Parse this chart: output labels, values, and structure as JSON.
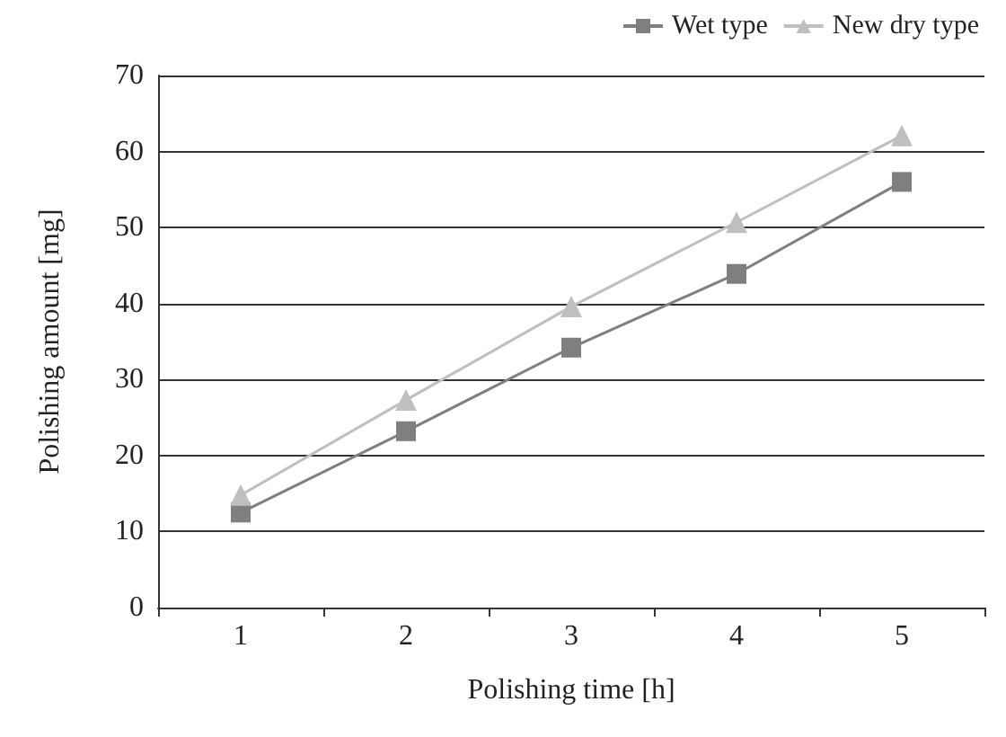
{
  "chart_data": {
    "type": "line",
    "xlabel": "Polishing time [h]",
    "ylabel": "Polishing amount [mg]",
    "categories": [
      "1",
      "2",
      "3",
      "4",
      "5"
    ],
    "series": [
      {
        "name": "Wet type",
        "color": "#7f7f7f",
        "marker": "square",
        "values": [
          12.5,
          23.2,
          34.2,
          43.9,
          56.0
        ]
      },
      {
        "name": "New dry type",
        "color": "#bfbfbf",
        "marker": "triangle",
        "values": [
          14.8,
          27.3,
          39.6,
          50.7,
          62.1
        ]
      }
    ],
    "ylim": [
      0,
      70
    ],
    "yticks": [
      0,
      10,
      20,
      30,
      40,
      50,
      60,
      70
    ],
    "grid": "y",
    "legend": "top right"
  }
}
